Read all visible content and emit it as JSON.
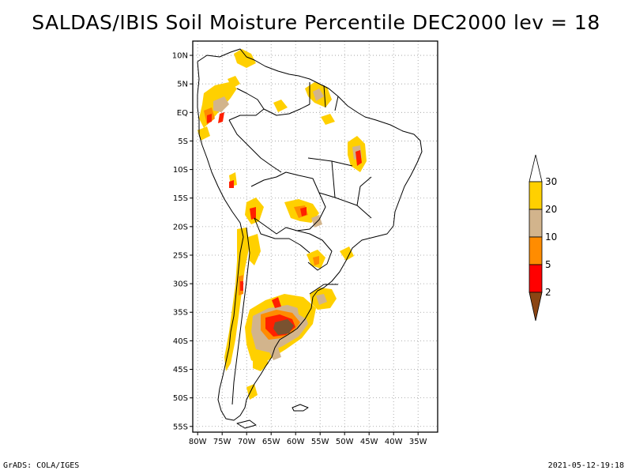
{
  "title": "SALDAS/IBIS Soil Moisture Percentile DEC2000 lev = 18",
  "footer": {
    "left": "GrADS: COLA/IGES",
    "right": "2021-05-12-19:18"
  },
  "map": {
    "lat_labels": [
      "10N",
      "5N",
      "EQ",
      "5S",
      "10S",
      "15S",
      "20S",
      "25S",
      "30S",
      "35S",
      "40S",
      "45S",
      "50S",
      "55S"
    ],
    "lon_labels": [
      "80W",
      "75W",
      "70W",
      "65W",
      "60W",
      "55W",
      "50W",
      "45W",
      "40W",
      "35W"
    ],
    "grid": true,
    "grid_style": "dotted"
  },
  "colorbar": {
    "labels": [
      "30",
      "20",
      "10",
      "5",
      "2"
    ],
    "colors": {
      "above_30": "#ffffff",
      "20_30": "#ffd000",
      "10_20": "#d2b48c",
      "5_10": "#ff8c00",
      "2_5": "#ff0000",
      "below_2": "#8b4513"
    }
  }
}
